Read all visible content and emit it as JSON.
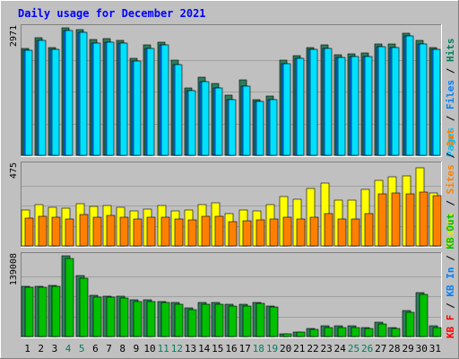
{
  "chart_data": {
    "type": "bar",
    "title": "Daily usage for December 2021",
    "categories": [
      "1",
      "2",
      "3",
      "4",
      "5",
      "6",
      "7",
      "8",
      "9",
      "10",
      "11",
      "12",
      "13",
      "14",
      "15",
      "16",
      "17",
      "18",
      "19",
      "20",
      "21",
      "22",
      "23",
      "24",
      "25",
      "26",
      "27",
      "28",
      "29",
      "30",
      "31"
    ],
    "weekend_days": [
      "4",
      "5",
      "11",
      "12",
      "18",
      "19",
      "25",
      "26"
    ],
    "weekend_color": "#00805C",
    "weekday_color": "#000000",
    "panels": [
      {
        "max_label": "2971",
        "ylim": [
          0,
          2971
        ],
        "side_label": [
          {
            "text": "Pages",
            "color": "#00C0FF"
          },
          {
            "text": "Files",
            "color": "#0080FF"
          },
          {
            "text": "Hits",
            "color": "#00805C"
          }
        ],
        "series": [
          {
            "name": "Hits",
            "color": "#2E7D5B",
            "values": [
              2480,
              2735,
              2520,
              2971,
              2930,
              2700,
              2710,
              2680,
              2260,
              2580,
              2640,
              2210,
              1570,
              1820,
              1670,
              1400,
              1760,
              1300,
              1380,
              2210,
              2330,
              2520,
              2580,
              2340,
              2360,
              2380,
              2600,
              2600,
              2840,
              2680,
              2520
            ]
          },
          {
            "name": "Files",
            "color": "#0080FF",
            "values": [
              2440,
              2670,
              2460,
              2910,
              2860,
              2620,
              2630,
              2620,
              2190,
              2490,
              2570,
              2120,
              1500,
              1720,
              1570,
              1300,
              1620,
              1250,
              1290,
              2130,
              2270,
              2460,
              2480,
              2280,
              2300,
              2310,
              2530,
              2520,
              2780,
              2600,
              2470
            ]
          },
          {
            "name": "Pages",
            "color": "#00E0FF",
            "values": [
              2440,
              2670,
              2460,
              2910,
              2860,
              2620,
              2630,
              2620,
              2190,
              2490,
              2570,
              2120,
              1500,
              1720,
              1570,
              1300,
              1620,
              1250,
              1290,
              2130,
              2270,
              2460,
              2480,
              2280,
              2300,
              2310,
              2530,
              2520,
              2780,
              2600,
              2470
            ]
          }
        ]
      },
      {
        "max_label": "475",
        "ylim": [
          0,
          475
        ],
        "side_label": [
          {
            "text": "Visits",
            "color": "#E8E800"
          },
          {
            "text": "Sites",
            "color": "#FF8000"
          },
          {
            "text": "Out",
            "color": "#FF8000"
          }
        ],
        "series": [
          {
            "name": "Visits",
            "color": "#FFFF00",
            "values": [
              212,
              245,
              228,
              220,
              247,
              230,
              240,
              225,
              205,
              215,
              240,
              205,
              210,
              243,
              255,
              190,
              210,
              205,
              245,
              290,
              275,
              340,
              368,
              270,
              270,
              335,
              385,
              408,
              410,
              460,
              310
            ]
          },
          {
            "name": "Sites",
            "color": "#FF8000",
            "values": [
              165,
              175,
              170,
              160,
              185,
              170,
              180,
              170,
              160,
              170,
              170,
              160,
              155,
              175,
              175,
              145,
              150,
              155,
              160,
              170,
              160,
              170,
              190,
              160,
              160,
              190,
              305,
              310,
              305,
              315,
              295
            ]
          }
        ]
      },
      {
        "max_label": "139008",
        "ylim": [
          0,
          139008
        ],
        "side_label": [
          {
            "text": "KB F",
            "color": "#FF0000"
          },
          {
            "text": "KB In",
            "color": "#0080FF"
          },
          {
            "text": "KB Out",
            "color": "#00C000"
          }
        ],
        "series": [
          {
            "name": "KB F",
            "color": "#2E7D5B",
            "values": [
              87000,
              87000,
              88000,
              139008,
              105000,
              71000,
              69000,
              69000,
              64000,
              63000,
              61000,
              59000,
              50000,
              58000,
              58000,
              55000,
              55000,
              59000,
              53000,
              5000,
              8000,
              14000,
              18000,
              18000,
              18000,
              16000,
              25000,
              16000,
              45000,
              76000,
              18000
            ]
          },
          {
            "name": "KB Out",
            "color": "#00C000",
            "values": [
              85000,
              85000,
              86000,
              135000,
              101000,
              68000,
              68000,
              67000,
              61000,
              61000,
              58000,
              56000,
              47000,
              55000,
              55000,
              53000,
              53000,
              57000,
              51000,
              4000,
              7000,
              12000,
              16000,
              16000,
              16000,
              14000,
              22000,
              14000,
              42000,
              72000,
              16000
            ]
          }
        ]
      }
    ]
  }
}
